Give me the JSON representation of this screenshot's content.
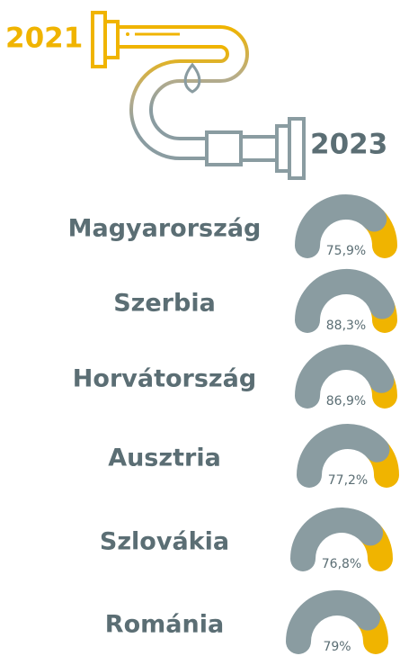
{
  "chart_data": {
    "type": "gauge",
    "year_start": "2021",
    "year_end": "2023",
    "categories": [
      "Magyarország",
      "Szerbia",
      "Horvátország",
      "Ausztria",
      "Szlovákia",
      "Románia"
    ],
    "values": [
      75.9,
      88.3,
      86.9,
      77.2,
      76.8,
      79
    ],
    "value_labels": [
      "75,9%",
      "88,3%",
      "86,9%",
      "77,2%",
      "76,8%",
      "79%"
    ],
    "ylim": [
      0,
      100
    ],
    "color": "#8a9ca1",
    "remainder_color": "#f0b400"
  }
}
